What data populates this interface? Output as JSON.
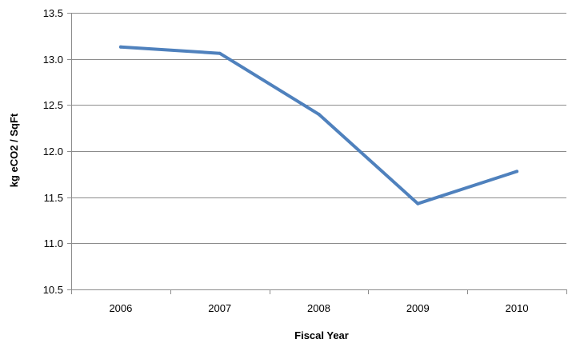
{
  "chart_data": {
    "type": "line",
    "title": "",
    "xlabel": "Fiscal Year",
    "ylabel": "kg eCO2 / SqFt",
    "categories": [
      "2006",
      "2007",
      "2008",
      "2009",
      "2010"
    ],
    "series": [
      {
        "values": [
          13.13,
          13.06,
          12.4,
          11.43,
          11.78
        ]
      }
    ],
    "ylim": [
      10.5,
      13.5
    ],
    "yticks": [
      10.5,
      11.0,
      11.5,
      12.0,
      12.5,
      13.0,
      13.5
    ],
    "ytick_labels": [
      "10.5",
      "11.0",
      "11.5",
      "12.0",
      "12.5",
      "13.0",
      "13.5"
    ],
    "grid": true,
    "legend": "none",
    "colors": {
      "series": "#4f81bd",
      "grid": "#8c8c8c"
    }
  }
}
